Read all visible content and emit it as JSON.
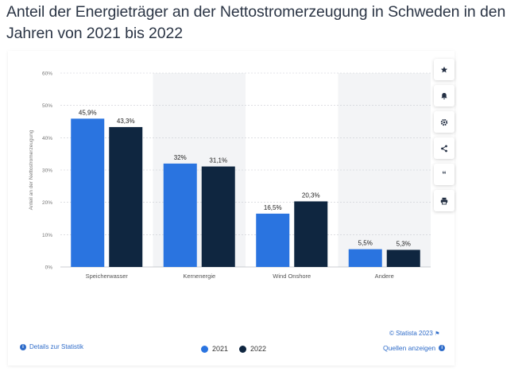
{
  "page": {
    "title": "Anteil der Energieträger an der Nettostromerzeugung in Schweden in den Jahren von 2021 bis 2022"
  },
  "chart_data": {
    "type": "bar",
    "categories": [
      "Speicherwasser",
      "Kernenergie",
      "Wind Onshore",
      "Andere"
    ],
    "series": [
      {
        "name": "2021",
        "values": [
          45.9,
          32,
          16.5,
          5.5
        ],
        "labels": [
          "45,9%",
          "32%",
          "16,5%",
          "5,5%"
        ],
        "color": "#2a74e0"
      },
      {
        "name": "2022",
        "values": [
          43.3,
          31.1,
          20.3,
          5.3
        ],
        "labels": [
          "43,3%",
          "31,1%",
          "20,3%",
          "5,3%"
        ],
        "color": "#0f2640"
      }
    ],
    "ylabel": "Anteil an der Nettostromerzeugung",
    "ylim": [
      0,
      60
    ],
    "yticks": [
      "0%",
      "10%",
      "20%",
      "30%",
      "40%",
      "50%",
      "60%"
    ],
    "ytick_values": [
      0,
      10,
      20,
      30,
      40,
      50,
      60
    ],
    "grid": true,
    "legend_placement": "bottom-center",
    "band_color": "#f3f4f6"
  },
  "footer": {
    "copyright": "© Statista 2023",
    "details": "Details zur Statistik",
    "sources": "Quellen anzeigen"
  },
  "toolbar": {
    "icons": [
      "star-icon",
      "bell-icon",
      "gear-icon",
      "share-icon",
      "quote-icon",
      "print-icon"
    ]
  }
}
